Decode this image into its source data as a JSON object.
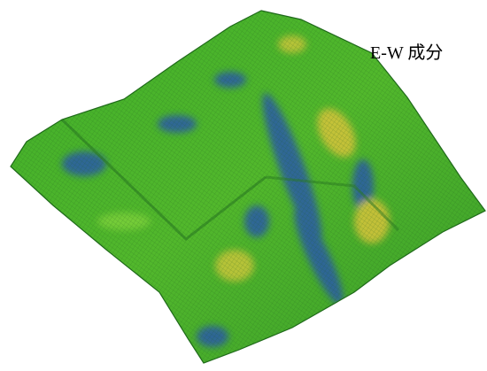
{
  "label": "E-W 成分"
}
